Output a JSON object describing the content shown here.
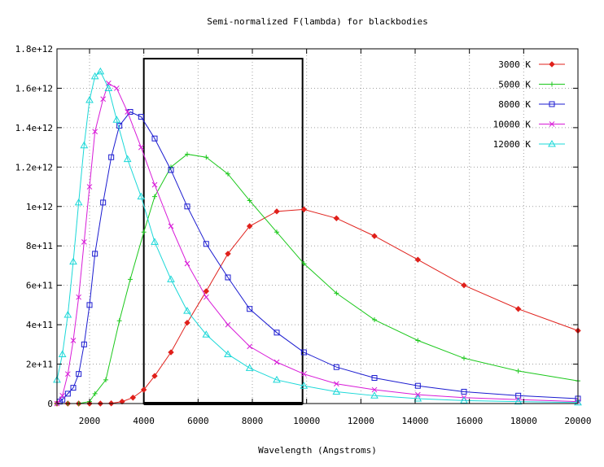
{
  "chart_data": {
    "type": "line",
    "title": "Semi-normalized F(lambda) for blackbodies",
    "xlabel": "Wavelength (Angstroms)",
    "ylabel": "",
    "xlim": [
      800,
      20000
    ],
    "ylim": [
      0,
      1800000000000
    ],
    "grid": true,
    "legend_position": "top-right",
    "x_ticks": [
      {
        "value": 2000,
        "label": "2000"
      },
      {
        "value": 4000,
        "label": "4000"
      },
      {
        "value": 6000,
        "label": "6000"
      },
      {
        "value": 8000,
        "label": "8000"
      },
      {
        "value": 10000,
        "label": "10000"
      },
      {
        "value": 12000,
        "label": "12000"
      },
      {
        "value": 14000,
        "label": "14000"
      },
      {
        "value": 16000,
        "label": "16000"
      },
      {
        "value": 18000,
        "label": "18000"
      },
      {
        "value": 20000,
        "label": "20000"
      }
    ],
    "y_ticks": [
      {
        "value": 0,
        "label": "0"
      },
      {
        "value": 200000000000,
        "label": "2e+11"
      },
      {
        "value": 400000000000,
        "label": "4e+11"
      },
      {
        "value": 600000000000,
        "label": "6e+11"
      },
      {
        "value": 800000000000,
        "label": "8e+11"
      },
      {
        "value": 1000000000000,
        "label": "1e+12"
      },
      {
        "value": 1200000000000,
        "label": "1.2e+12"
      },
      {
        "value": 1400000000000,
        "label": "1.4e+12"
      },
      {
        "value": 1600000000000,
        "label": "1.6e+12"
      },
      {
        "value": 1800000000000,
        "label": "1.8e+12"
      }
    ],
    "annotation_box": {
      "x_range": [
        4000,
        9850
      ],
      "y_range": [
        0,
        1750000000000
      ]
    },
    "series": [
      {
        "name": "3000 K",
        "color": "#e0201b",
        "marker": "diamond",
        "x": [
          800,
          1200,
          1600,
          2000,
          2400,
          2800,
          3200,
          3600,
          4000,
          4400,
          5000,
          5600,
          6300,
          7100,
          7900,
          8900,
          9900,
          11100,
          12500,
          14100,
          15800,
          17800,
          20000
        ],
        "y": [
          0,
          0,
          0,
          0,
          0,
          1000000000,
          10000000000,
          30000000000,
          70000000000,
          140000000000,
          260000000000,
          410000000000,
          570000000000,
          760000000000,
          900000000000,
          975000000000,
          985000000000,
          940000000000,
          850000000000,
          730000000000,
          600000000000,
          480000000000,
          370000000000
        ]
      },
      {
        "name": "5000 K",
        "color": "#1bc81b",
        "marker": "plus",
        "x": [
          800,
          1200,
          1600,
          2000,
          2200,
          2600,
          3100,
          3500,
          4000,
          4400,
          5000,
          5600,
          6300,
          7100,
          7900,
          8900,
          9900,
          11100,
          12500,
          14100,
          15800,
          17800,
          20000
        ],
        "y": [
          0,
          0,
          0,
          10000000000,
          50000000000,
          120000000000,
          420000000000,
          630000000000,
          870000000000,
          1050000000000,
          1200000000000,
          1265000000000,
          1250000000000,
          1165000000000,
          1030000000000,
          870000000000,
          710000000000,
          560000000000,
          425000000000,
          320000000000,
          230000000000,
          165000000000,
          115000000000
        ]
      },
      {
        "name": "8000 K",
        "color": "#1b1bd0",
        "marker": "square",
        "x": [
          900,
          1000,
          1200,
          1400,
          1600,
          1800,
          2000,
          2200,
          2500,
          2800,
          3100,
          3500,
          3900,
          4400,
          5000,
          5600,
          6300,
          7100,
          7900,
          8900,
          9900,
          11100,
          12500,
          14100,
          15800,
          17800,
          20000
        ],
        "y": [
          10000000000,
          20000000000,
          50000000000,
          80000000000,
          150000000000,
          300000000000,
          500000000000,
          760000000000,
          1020000000000,
          1250000000000,
          1410000000000,
          1480000000000,
          1455000000000,
          1345000000000,
          1185000000000,
          1000000000000,
          810000000000,
          640000000000,
          480000000000,
          360000000000,
          260000000000,
          185000000000,
          130000000000,
          90000000000,
          60000000000,
          40000000000,
          25000000000
        ]
      },
      {
        "name": "10000 K",
        "color": "#d81bd8",
        "marker": "cross",
        "x": [
          800,
          1000,
          1200,
          1400,
          1600,
          1800,
          2000,
          2200,
          2500,
          2700,
          3000,
          3400,
          3900,
          4400,
          5000,
          5600,
          6300,
          7100,
          7900,
          8900,
          9900,
          11100,
          12500,
          14100,
          15800,
          17800,
          20000
        ],
        "y": [
          0,
          40000000000,
          150000000000,
          320000000000,
          540000000000,
          820000000000,
          1100000000000,
          1380000000000,
          1545000000000,
          1625000000000,
          1600000000000,
          1480000000000,
          1300000000000,
          1110000000000,
          900000000000,
          710000000000,
          540000000000,
          400000000000,
          290000000000,
          210000000000,
          150000000000,
          100000000000,
          70000000000,
          45000000000,
          30000000000,
          20000000000,
          10000000000
        ]
      },
      {
        "name": "12000 K",
        "color": "#1bd8d8",
        "marker": "triangle",
        "x": [
          800,
          1000,
          1200,
          1400,
          1600,
          1800,
          2000,
          2200,
          2400,
          2700,
          3000,
          3400,
          3900,
          4400,
          5000,
          5600,
          6300,
          7100,
          7900,
          8900,
          9900,
          11100,
          12500,
          14100,
          15800,
          17800,
          20000
        ],
        "y": [
          120000000000,
          250000000000,
          450000000000,
          720000000000,
          1020000000000,
          1310000000000,
          1540000000000,
          1660000000000,
          1685000000000,
          1600000000000,
          1440000000000,
          1240000000000,
          1050000000000,
          820000000000,
          630000000000,
          470000000000,
          350000000000,
          250000000000,
          180000000000,
          120000000000,
          90000000000,
          60000000000,
          40000000000,
          25000000000,
          15000000000,
          10000000000,
          5000000000
        ]
      }
    ]
  }
}
